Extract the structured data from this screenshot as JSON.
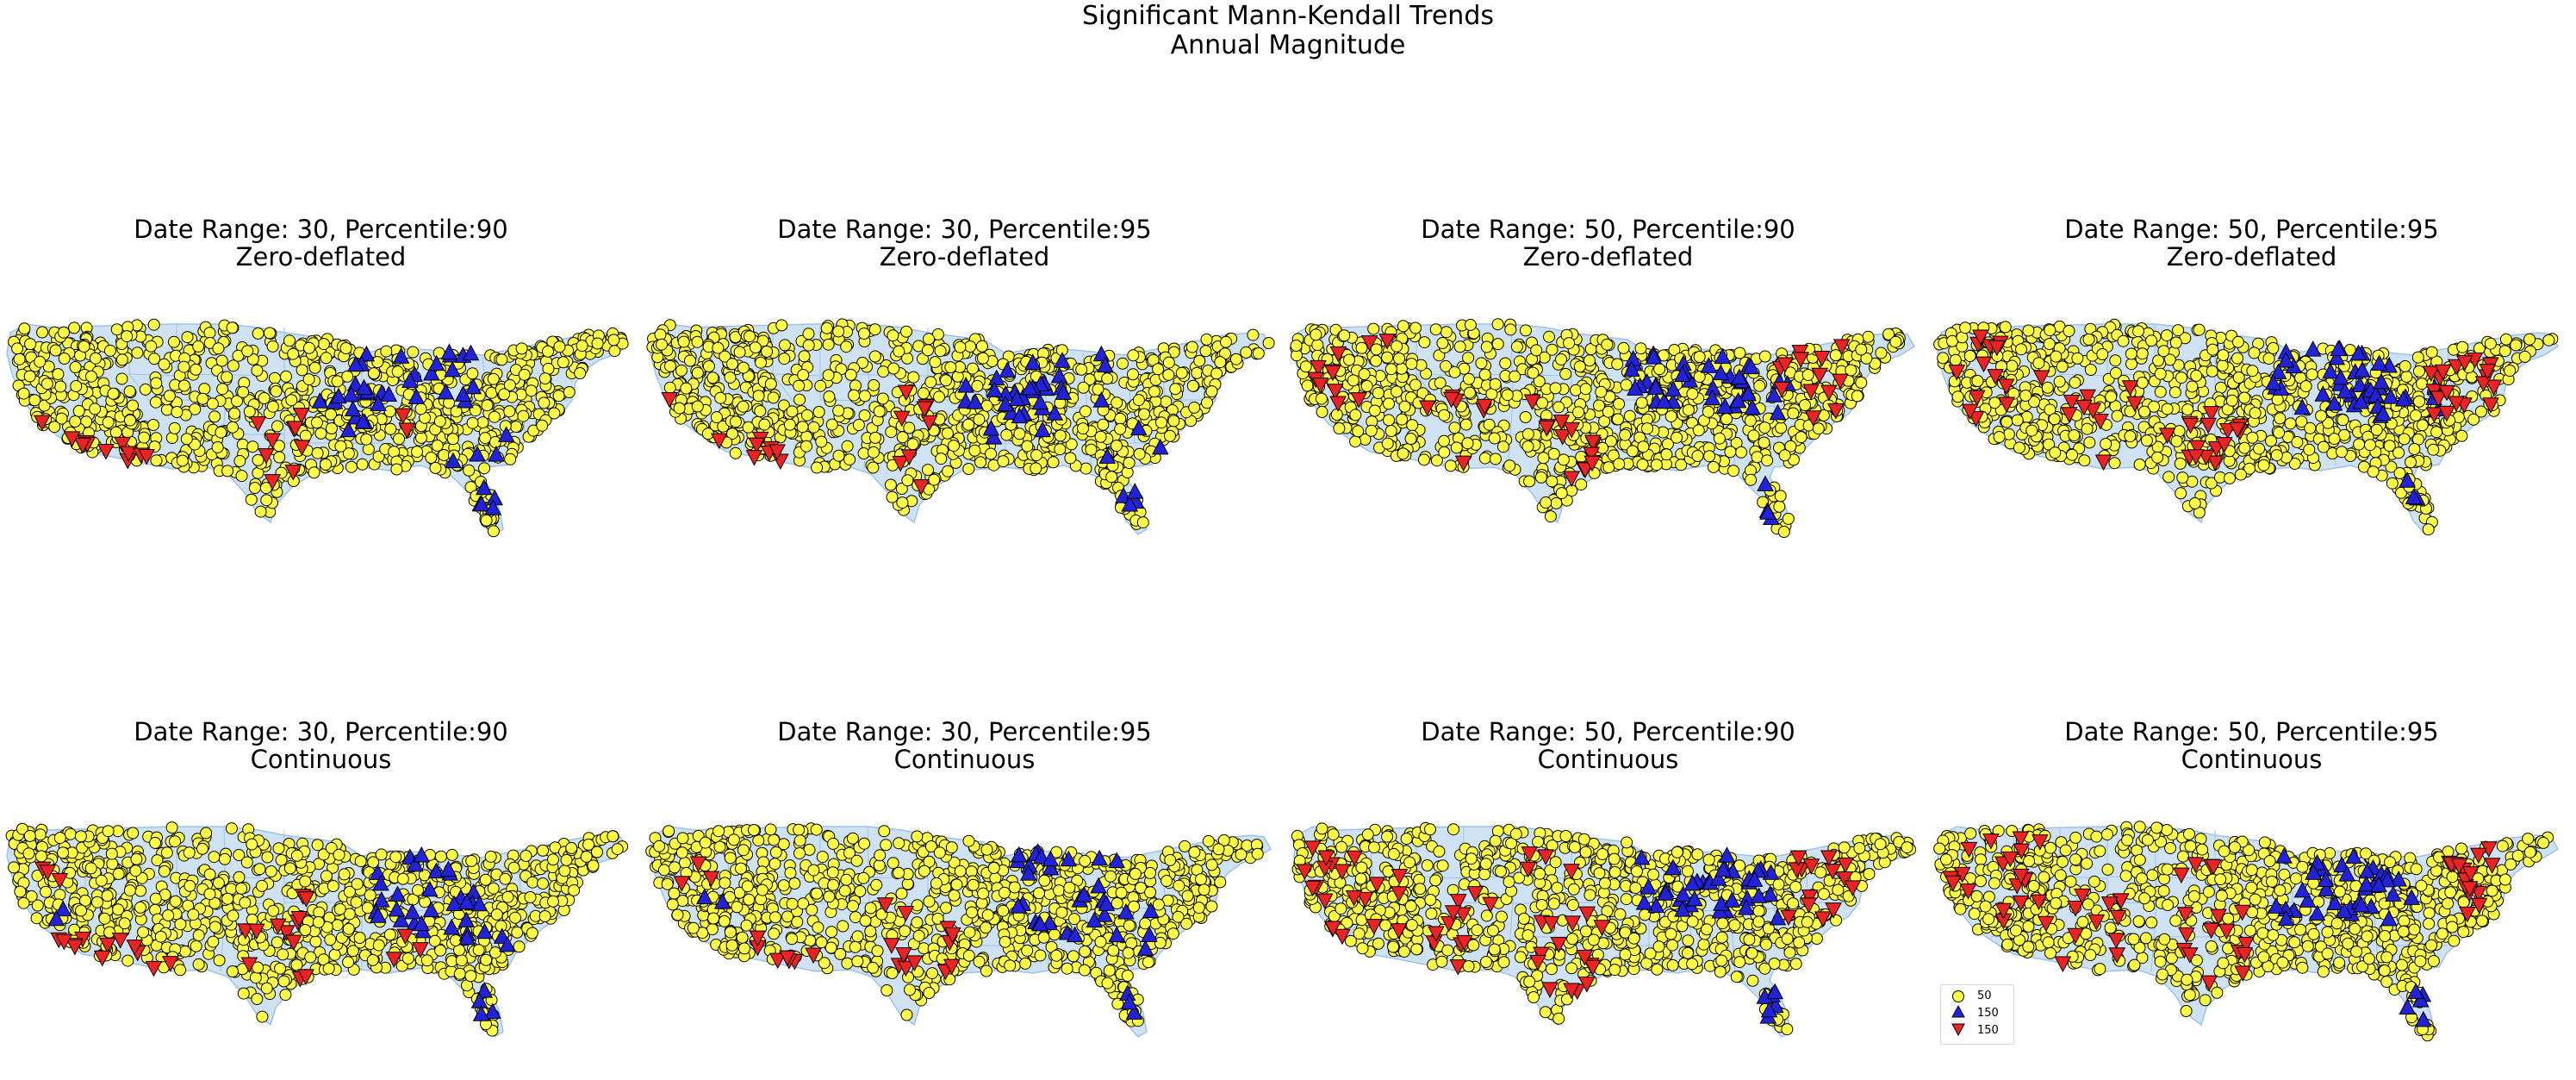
{
  "figure": {
    "title_line1": "Significant Mann-Kendall Trends",
    "title_line2": "Annual Magnitude"
  },
  "colors": {
    "land": "#cfe2f3",
    "land_edge": "#9ec2e6",
    "no_trend": "#ffff44",
    "increasing": "#2222dd",
    "decreasing": "#ee2222",
    "marker_edge": "#000000"
  },
  "chart_data": [
    {
      "type": "scatter",
      "title_line1": "Date Range: 30, Percentile:90",
      "title_line2": "Zero-deflated",
      "date_range": 30,
      "percentile": 90,
      "model": "Zero-deflated",
      "series": [
        {
          "marker": "circle",
          "color": "yellow"
        },
        {
          "marker": "triangle-up",
          "color": "blue"
        },
        {
          "marker": "triangle-down",
          "color": "red"
        }
      ]
    },
    {
      "type": "scatter",
      "title_line1": "Date Range: 30, Percentile:95",
      "title_line2": "Zero-deflated",
      "date_range": 30,
      "percentile": 95,
      "model": "Zero-deflated",
      "series": [
        {
          "marker": "circle",
          "color": "yellow"
        },
        {
          "marker": "triangle-up",
          "color": "blue"
        },
        {
          "marker": "triangle-down",
          "color": "red"
        }
      ]
    },
    {
      "type": "scatter",
      "title_line1": "Date Range: 50, Percentile:90",
      "title_line2": "Zero-deflated",
      "date_range": 50,
      "percentile": 90,
      "model": "Zero-deflated",
      "series": [
        {
          "marker": "circle",
          "color": "yellow"
        },
        {
          "marker": "triangle-up",
          "color": "blue"
        },
        {
          "marker": "triangle-down",
          "color": "red"
        }
      ]
    },
    {
      "type": "scatter",
      "title_line1": "Date Range: 50, Percentile:95",
      "title_line2": "Zero-deflated",
      "date_range": 50,
      "percentile": 95,
      "model": "Zero-deflated",
      "series": [
        {
          "marker": "circle",
          "color": "yellow"
        },
        {
          "marker": "triangle-up",
          "color": "blue"
        },
        {
          "marker": "triangle-down",
          "color": "red"
        }
      ]
    },
    {
      "type": "scatter",
      "title_line1": "Date Range: 30, Percentile:90",
      "title_line2": "Continuous",
      "date_range": 30,
      "percentile": 90,
      "model": "Continuous",
      "series": [
        {
          "marker": "circle",
          "color": "yellow"
        },
        {
          "marker": "triangle-up",
          "color": "blue"
        },
        {
          "marker": "triangle-down",
          "color": "red"
        }
      ]
    },
    {
      "type": "scatter",
      "title_line1": "Date Range: 30, Percentile:95",
      "title_line2": "Continuous",
      "date_range": 30,
      "percentile": 95,
      "model": "Continuous",
      "series": [
        {
          "marker": "circle",
          "color": "yellow"
        },
        {
          "marker": "triangle-up",
          "color": "blue"
        },
        {
          "marker": "triangle-down",
          "color": "red"
        }
      ]
    },
    {
      "type": "scatter",
      "title_line1": "Date Range: 50, Percentile:90",
      "title_line2": "Continuous",
      "date_range": 50,
      "percentile": 90,
      "model": "Continuous",
      "series": [
        {
          "marker": "circle",
          "color": "yellow"
        },
        {
          "marker": "triangle-up",
          "color": "blue"
        },
        {
          "marker": "triangle-down",
          "color": "red"
        }
      ]
    },
    {
      "type": "scatter",
      "title_line1": "Date Range: 50, Percentile:95",
      "title_line2": "Continuous",
      "date_range": 50,
      "percentile": 95,
      "model": "Continuous",
      "series": [
        {
          "marker": "circle",
          "color": "yellow"
        },
        {
          "marker": "triangle-up",
          "color": "blue"
        },
        {
          "marker": "triangle-down",
          "color": "red"
        }
      ],
      "legend": {
        "placement": "lower-left",
        "entries": [
          {
            "marker": "circle",
            "color": "yellow",
            "label": "50"
          },
          {
            "marker": "triangle-up",
            "color": "blue",
            "label": "150"
          },
          {
            "marker": "triangle-down",
            "color": "red",
            "label": "150"
          }
        ]
      }
    }
  ]
}
